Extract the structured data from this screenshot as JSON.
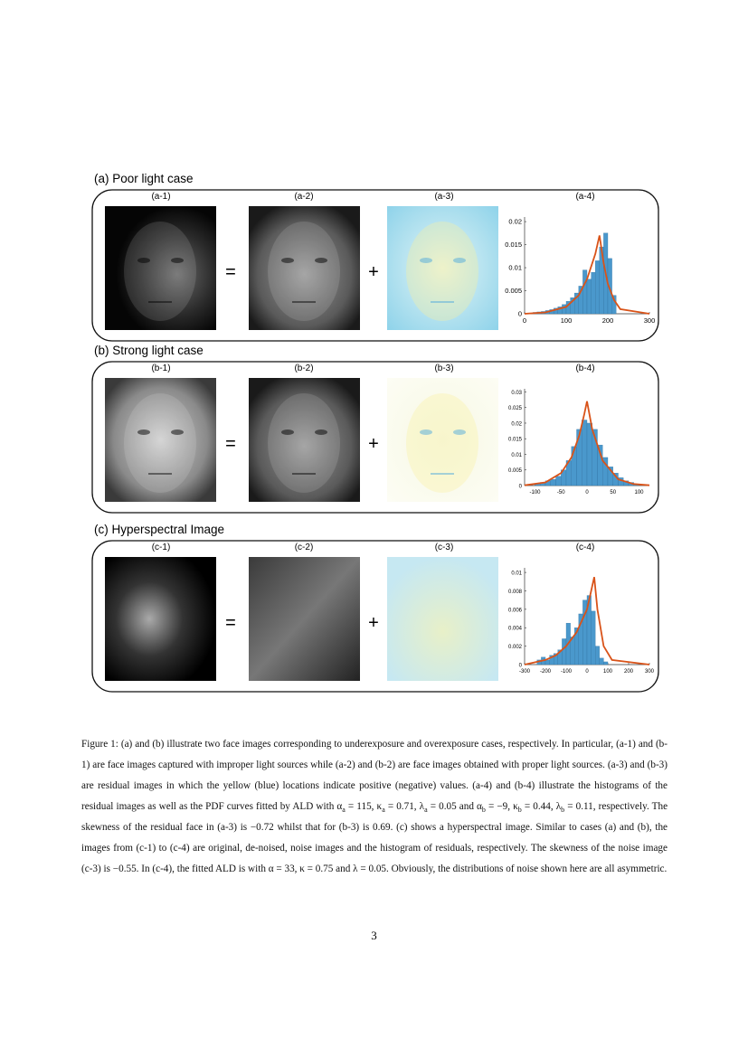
{
  "figure": {
    "rows": [
      {
        "title": "(a) Poor light case",
        "labels": [
          "(a-1)",
          "(a-2)",
          "(a-3)",
          "(a-4)"
        ],
        "equals": "=",
        "plus": "+",
        "chart": {
          "xlim": [
            0,
            300
          ],
          "ylim": [
            0,
            0.021
          ],
          "xticks": [
            0,
            100,
            200,
            300
          ],
          "yticks": [
            0,
            0.005,
            0.01,
            0.015,
            0.02
          ],
          "bins": [
            20,
            30,
            40,
            50,
            60,
            70,
            80,
            90,
            100,
            110,
            120,
            130,
            140,
            150,
            160,
            170,
            180,
            190,
            200,
            210,
            220
          ],
          "counts": [
            0.0003,
            0.0004,
            0.0005,
            0.0007,
            0.0009,
            0.0012,
            0.0015,
            0.002,
            0.0027,
            0.0035,
            0.0045,
            0.006,
            0.0095,
            0.0075,
            0.009,
            0.0115,
            0.0145,
            0.0175,
            0.012,
            0.004
          ],
          "curve": {
            "x": [
              0,
              50,
              100,
              130,
              150,
              170,
              180,
              190,
              200,
              215,
              230,
              300
            ],
            "y": [
              0,
              0.0003,
              0.0015,
              0.004,
              0.0075,
              0.013,
              0.017,
              0.011,
              0.0065,
              0.003,
              0.001,
              0
            ]
          }
        }
      },
      {
        "title": "(b) Strong light case",
        "labels": [
          "(b-1)",
          "(b-2)",
          "(b-3)",
          "(b-4)"
        ],
        "equals": "=",
        "plus": "+",
        "chart": {
          "xlim": [
            -120,
            120
          ],
          "ylim": [
            0,
            0.031
          ],
          "xticks": [
            -100,
            -50,
            0,
            50,
            100
          ],
          "yticks": [
            0,
            0.005,
            0.01,
            0.015,
            0.02,
            0.025,
            0.03
          ],
          "bins": [
            -100,
            -90,
            -80,
            -70,
            -60,
            -50,
            -40,
            -30,
            -20,
            -10,
            0,
            10,
            20,
            30,
            40,
            50,
            60,
            70,
            80,
            90,
            100
          ],
          "counts": [
            0.0005,
            0.001,
            0.0015,
            0.002,
            0.003,
            0.005,
            0.008,
            0.0125,
            0.018,
            0.021,
            0.02,
            0.018,
            0.013,
            0.009,
            0.006,
            0.004,
            0.0025,
            0.0015,
            0.001,
            0.0005
          ],
          "curve": {
            "x": [
              -120,
              -80,
              -50,
              -30,
              -15,
              -5,
              0,
              10,
              30,
              60,
              90,
              120
            ],
            "y": [
              0.0001,
              0.001,
              0.004,
              0.009,
              0.016,
              0.023,
              0.027,
              0.018,
              0.008,
              0.002,
              0.0005,
              0.0001
            ]
          }
        }
      },
      {
        "title": "(c) Hyperspectral Image",
        "labels": [
          "(c-1)",
          "(c-2)",
          "(c-3)",
          "(c-4)"
        ],
        "equals": "=",
        "plus": "+",
        "chart": {
          "xlim": [
            -300,
            300
          ],
          "ylim": [
            0,
            0.0105
          ],
          "xticks": [
            -300,
            -200,
            -100,
            0,
            100,
            200,
            300
          ],
          "yticks": [
            0,
            0.002,
            0.004,
            0.006,
            0.008,
            0.01
          ],
          "bins": [
            -240,
            -220,
            -200,
            -180,
            -160,
            -140,
            -120,
            -100,
            -80,
            -60,
            -40,
            -20,
            0,
            20,
            40,
            60,
            80,
            100
          ],
          "counts": [
            0.0005,
            0.0008,
            0.0005,
            0.001,
            0.0012,
            0.0016,
            0.0028,
            0.0045,
            0.003,
            0.004,
            0.0055,
            0.007,
            0.0075,
            0.0058,
            0.002,
            0.0007,
            0.0003
          ],
          "curve": {
            "x": [
              -300,
              -200,
              -150,
              -100,
              -50,
              0,
              20,
              35,
              50,
              80,
              120,
              300
            ],
            "y": [
              0,
              0.0005,
              0.001,
              0.002,
              0.0035,
              0.006,
              0.008,
              0.0095,
              0.006,
              0.002,
              0.0005,
              0
            ]
          }
        }
      }
    ]
  },
  "caption": [
    "Figure 1: (a) and (b) illustrate two face images corresponding to underexposure and overexposure cases, respectively. In particular, (a-1) and (b-1) are face images captured with improper light sources while (a-2) and (b-2) are face images obtained with proper light sources. (a-3) and (b-3) are residual images in which the yellow (blue) locations indicate positive (negative) values. (a-4) and (b-4) illustrate the histograms of the residual images as well as the PDF curves fitted by ALD with α",
    {
      "sub": "a"
    },
    " = 115, κ",
    {
      "sub": "a"
    },
    " = 0.71, λ",
    {
      "sub": "a"
    },
    " = 0.05 and α",
    {
      "sub": "b"
    },
    " = −9, κ",
    {
      "sub": "b"
    },
    " = 0.44, λ",
    {
      "sub": "b"
    },
    " = 0.11, respectively. The skewness of the residual face in (a-3) is −0.72 whilst that for (b-3) is 0.69. (c) shows a hyperspectral image. Similar to cases (a) and (b), the images from (c-1) to (c-4) are original, de-noised, noise images and the histogram of residuals, respectively. The skewness of the noise image (c-3) is −0.55. In (c-4), the fitted ALD is with α = 33, κ = 0.75 and λ = 0.05. Obviously, the distributions of noise shown here are all asymmetric."
  ],
  "page_number": "3"
}
